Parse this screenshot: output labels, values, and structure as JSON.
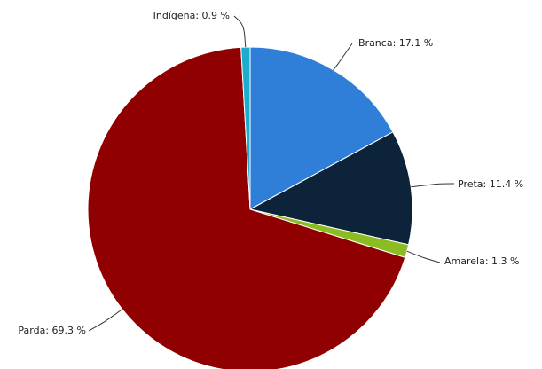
{
  "chart_data": {
    "type": "pie",
    "unit": "%",
    "slices": [
      {
        "label": "Branca",
        "value": 17.1,
        "text": "Branca: 17.1 %",
        "color": "#2f7ed8"
      },
      {
        "label": "Preta",
        "value": 11.4,
        "text": "Preta: 11.4 %",
        "color": "#0d233a"
      },
      {
        "label": "Amarela",
        "value": 1.3,
        "text": "Amarela: 1.3 %",
        "color": "#8bbc21"
      },
      {
        "label": "Parda",
        "value": 69.3,
        "text": "Parda: 69.3 %",
        "color": "#910000"
      },
      {
        "label": "Indígena",
        "value": 0.9,
        "text": "Indígena: 0.9 %",
        "color": "#1aadce"
      }
    ],
    "start": "top (12 o'clock)",
    "direction": "clockwise",
    "legend": "none",
    "title": ""
  }
}
